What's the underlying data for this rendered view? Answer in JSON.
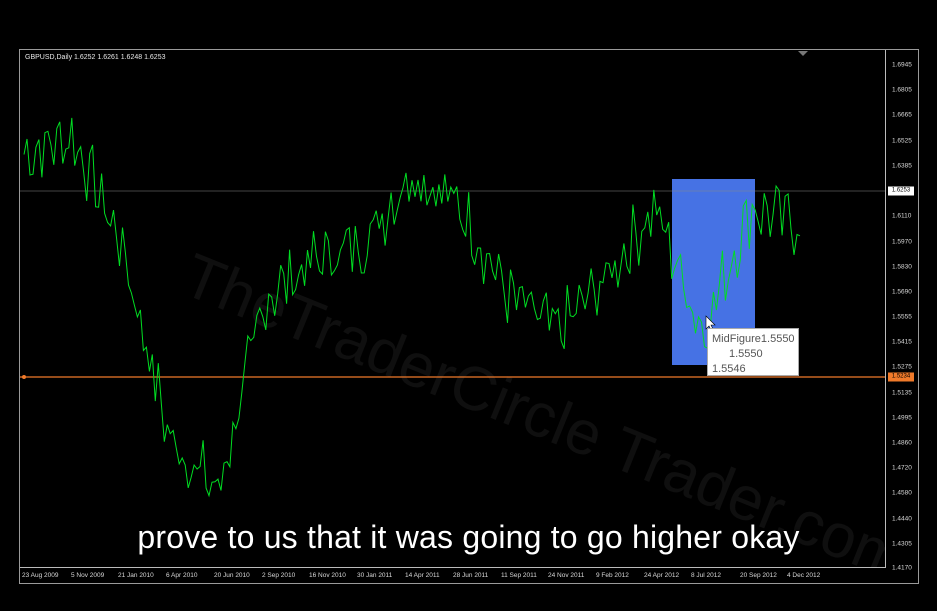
{
  "chart": {
    "symbol_info": "GBPUSD,Daily  1.6252 1.6261 1.6248 1.6253",
    "y_ticks": [
      "1.6945",
      "1.6805",
      "1.6665",
      "1.6525",
      "1.6385",
      "1.6110",
      "1.5970",
      "1.5830",
      "1.5690",
      "1.5555",
      "1.5415",
      "1.5275",
      "1.5135",
      "1.4995",
      "1.4860",
      "1.4720",
      "1.4580",
      "1.4440",
      "1.4305",
      "1.4170"
    ],
    "x_ticks": [
      "23 Aug 2009",
      "5 Nov 2009",
      "21 Jan 2010",
      "6 Apr 2010",
      "20 Jun 2010",
      "2 Sep 2010",
      "16 Nov 2010",
      "30 Jan 2011",
      "14 Apr 2011",
      "28 Jun 2011",
      "11 Sep 2011",
      "24 Nov 2011",
      "9 Feb 2012",
      "24 Apr 2012",
      "8 Jul 2012",
      "20 Sep 2012",
      "4 Dec 2012"
    ],
    "current_price_label": "1.6253",
    "hline_price_label": "1.5234",
    "tooltip": {
      "line1": "MidFigure1.5550",
      "line2": "1.5550",
      "line3": "1.5546"
    },
    "colors": {
      "line": "#00dd22",
      "hline": "#f07a2a",
      "rect": "#4a78f0"
    }
  },
  "subtitle": "prove to us that it was going to go higher okay",
  "chart_data": {
    "type": "line",
    "series": [
      {
        "x": [
          "23 Aug 2009",
          "5 Nov 2009",
          "21 Jan 2010",
          "6 Apr 2010",
          "20 Jun 2010",
          "2 Sep 2010",
          "16 Nov 2010",
          "30 Jan 2011",
          "14 Apr 2011",
          "28 Jun 2011",
          "11 Sep 2011",
          "24 Nov 2011",
          "9 Feb 2012",
          "24 Apr 2012",
          "8 Jul 2012",
          "20 Sep 2012",
          "4 Dec 2012"
        ],
        "values": [
          1.65,
          1.66,
          1.6,
          1.49,
          1.46,
          1.57,
          1.59,
          1.6,
          1.64,
          1.62,
          1.57,
          1.55,
          1.58,
          1.62,
          1.55,
          1.62,
          1.61
        ]
      }
    ],
    "ylim": [
      1.417,
      1.7085
    ],
    "grid": false
  }
}
